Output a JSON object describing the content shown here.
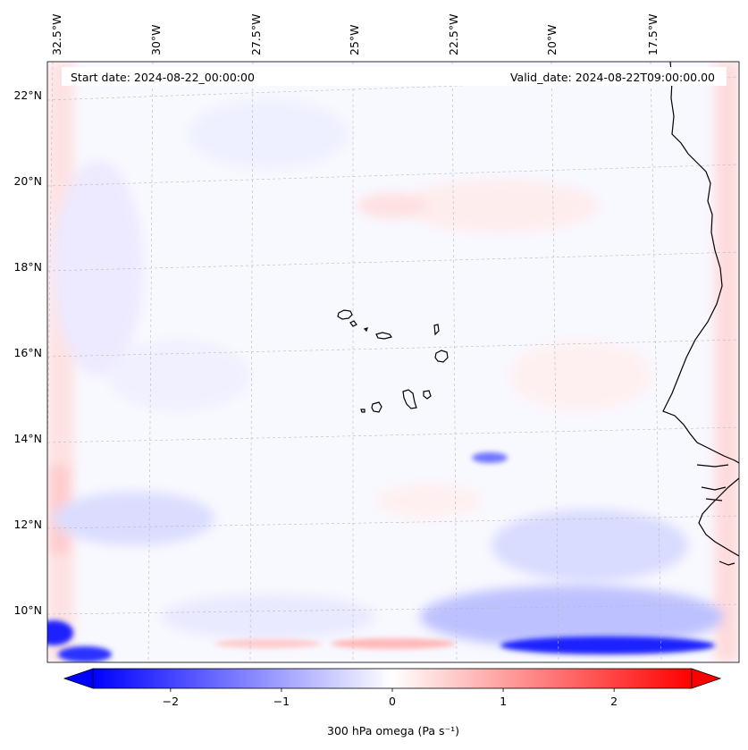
{
  "map": {
    "start_date": "Start date: 2024-08-22_00:00:00",
    "valid_date": "Valid_date: 2024-08-22T09:00:00.00",
    "lon_ticks": [
      {
        "value": -32.5,
        "label": "32.5°W"
      },
      {
        "value": -30.0,
        "label": "30°W"
      },
      {
        "value": -27.5,
        "label": "27.5°W"
      },
      {
        "value": -25.0,
        "label": "25°W"
      },
      {
        "value": -22.5,
        "label": "22.5°W"
      },
      {
        "value": -20.0,
        "label": "20°W"
      },
      {
        "value": -17.5,
        "label": "17.5°W"
      }
    ],
    "lat_ticks": [
      {
        "value": 22,
        "label": "22°N"
      },
      {
        "value": 20,
        "label": "20°N"
      },
      {
        "value": 18,
        "label": "18°N"
      },
      {
        "value": 16,
        "label": "16°N"
      },
      {
        "value": 14,
        "label": "14°N"
      },
      {
        "value": 12,
        "label": "12°N"
      },
      {
        "value": 10,
        "label": "10°N"
      }
    ],
    "colors": {
      "negative": "#0000ff",
      "neutral": "#ffffff",
      "positive": "#ff0000",
      "coastline": "#000000",
      "gridline": "#b0b0b0"
    }
  },
  "colorbar": {
    "min": -2.7,
    "max": 2.7,
    "ticks": [
      {
        "value": -2,
        "label": "−2"
      },
      {
        "value": -1,
        "label": "−1"
      },
      {
        "value": 0,
        "label": "0"
      },
      {
        "value": 1,
        "label": "1"
      },
      {
        "value": 2,
        "label": "2"
      }
    ],
    "label": "300 hPa omega (Pa s⁻¹)",
    "extend": "both"
  }
}
